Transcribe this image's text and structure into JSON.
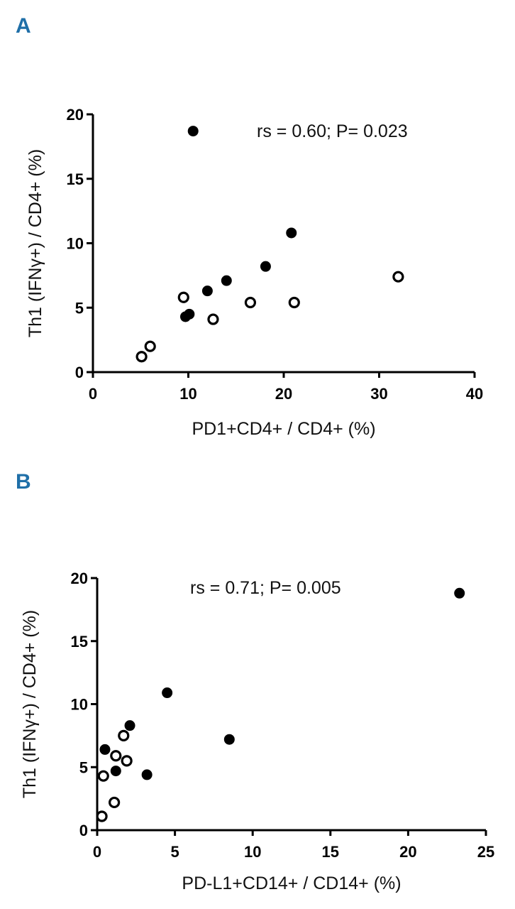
{
  "chart_data": [
    {
      "panel": "A",
      "type": "scatter",
      "title": "",
      "xlabel": "PD1+CD4+ / CD4+ (%)",
      "ylabel": "Th1 (IFNγ+) / CD4+ (%)",
      "xlim": [
        0,
        40
      ],
      "ylim": [
        0,
        20
      ],
      "xticks": [
        0,
        10,
        20,
        30,
        40
      ],
      "yticks": [
        0,
        5,
        10,
        15,
        20
      ],
      "grid": false,
      "annotation": "rs = 0.60; P= 0.023",
      "series": [
        {
          "name": "filled",
          "marker": "filled-circle",
          "points": [
            [
              10.5,
              18.7
            ],
            [
              20.8,
              10.8
            ],
            [
              18.1,
              8.2
            ],
            [
              14.0,
              7.1
            ],
            [
              12.0,
              6.3
            ],
            [
              10.1,
              4.5
            ],
            [
              9.7,
              4.3
            ]
          ]
        },
        {
          "name": "open",
          "marker": "open-circle",
          "points": [
            [
              32.0,
              7.4
            ],
            [
              9.5,
              5.8
            ],
            [
              16.5,
              5.4
            ],
            [
              21.1,
              5.4
            ],
            [
              12.6,
              4.1
            ],
            [
              6.0,
              2.0
            ],
            [
              5.1,
              1.2
            ]
          ]
        }
      ]
    },
    {
      "panel": "B",
      "type": "scatter",
      "title": "",
      "xlabel": "PD-L1+CD14+ / CD14+ (%)",
      "ylabel": "Th1 (IFNγ+) / CD4+ (%)",
      "xlim": [
        0,
        25
      ],
      "ylim": [
        0,
        20
      ],
      "xticks": [
        0,
        5,
        10,
        15,
        20,
        25
      ],
      "yticks": [
        0,
        5,
        10,
        15,
        20
      ],
      "grid": false,
      "annotation": "rs = 0.71; P= 0.005",
      "series": [
        {
          "name": "filled",
          "marker": "filled-circle",
          "points": [
            [
              23.3,
              18.8
            ],
            [
              4.5,
              10.9
            ],
            [
              2.1,
              8.3
            ],
            [
              8.5,
              7.2
            ],
            [
              0.5,
              6.4
            ],
            [
              1.2,
              4.7
            ],
            [
              3.2,
              4.4
            ]
          ]
        },
        {
          "name": "open",
          "marker": "open-circle",
          "points": [
            [
              1.7,
              7.5
            ],
            [
              1.2,
              5.9
            ],
            [
              1.9,
              5.5
            ],
            [
              0.4,
              4.3
            ],
            [
              1.1,
              2.2
            ],
            [
              0.3,
              1.1
            ]
          ]
        }
      ]
    }
  ]
}
